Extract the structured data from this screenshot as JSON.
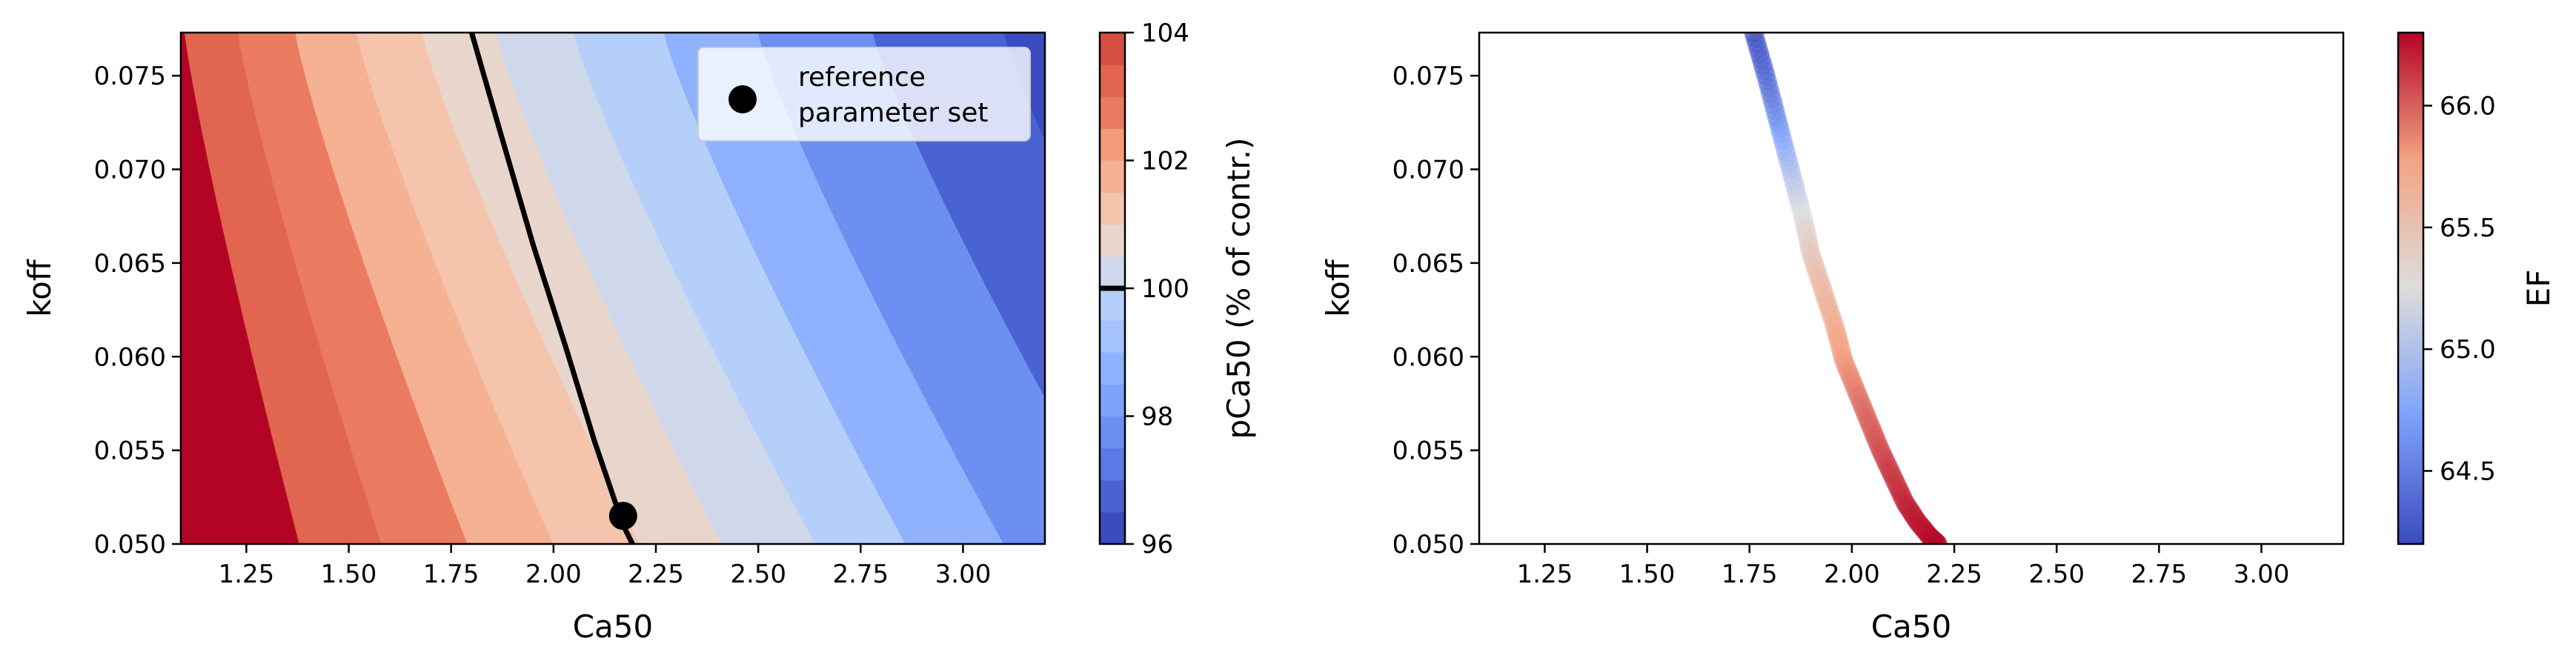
{
  "chart_data": [
    {
      "type": "contour",
      "xlabel": "Ca50",
      "ylabel": "koff",
      "xlim": [
        1.09,
        3.2
      ],
      "ylim": [
        0.05,
        0.0773
      ],
      "xticks": [
        "1.25",
        "1.50",
        "1.75",
        "2.00",
        "2.25",
        "2.50",
        "2.75",
        "3.00"
      ],
      "yticks": [
        "0.050",
        "0.055",
        "0.060",
        "0.065",
        "0.070",
        "0.075"
      ],
      "colorbar": {
        "label": "pCa50 (% of contr.)",
        "min": 96,
        "max": 104,
        "ticks": [
          "96",
          "98",
          "100",
          "102",
          "104"
        ],
        "levels": [
          96,
          96.5,
          97,
          97.5,
          98,
          98.5,
          99,
          99.5,
          100,
          100.5,
          101,
          101.5,
          102,
          102.5,
          103,
          103.5,
          104
        ],
        "colors": [
          "#3b4cc0",
          "#4a63d3",
          "#5b7ae5",
          "#6c8ff1",
          "#7ea1fa",
          "#90b2fe",
          "#a3c2fe",
          "#b5cffb",
          "#cfd8ea",
          "#e8d6cc",
          "#f4c4ac",
          "#f6b192",
          "#f39b7a",
          "#ea7b60",
          "#e2654f",
          "#d44e41",
          "#b40426"
        ],
        "reference_level": 100
      },
      "contour_100": {
        "x": [
          1.8,
          1.87,
          1.95,
          2.03,
          2.1,
          2.17,
          2.2
        ],
        "y": [
          0.0773,
          0.072,
          0.066,
          0.0605,
          0.0555,
          0.051,
          0.0497
        ]
      },
      "reference_point": {
        "x": 2.17,
        "y": 0.0515
      },
      "legend": {
        "label": "reference\nparameter set",
        "position": "upper-right"
      }
    },
    {
      "type": "scatter",
      "xlabel": "Ca50",
      "ylabel": "koff",
      "xlim": [
        1.09,
        3.2
      ],
      "ylim": [
        0.05,
        0.0773
      ],
      "xticks": [
        "1.25",
        "1.50",
        "1.75",
        "2.00",
        "2.25",
        "2.50",
        "2.75",
        "3.00"
      ],
      "yticks": [
        "0.050",
        "0.055",
        "0.060",
        "0.065",
        "0.070",
        "0.075"
      ],
      "colorbar": {
        "label": "EF",
        "min": 64.2,
        "max": 66.3,
        "ticks": [
          "64.5",
          "65.0",
          "65.5",
          "66.0"
        ]
      },
      "points": {
        "x": [
          1.76,
          1.79,
          1.82,
          1.85,
          1.88,
          1.9,
          1.93,
          1.96,
          1.98,
          2.01,
          2.04,
          2.07,
          2.1,
          2.13,
          2.16,
          2.19,
          2.21
        ],
        "y": [
          0.0773,
          0.075,
          0.0725,
          0.07,
          0.0675,
          0.0655,
          0.0635,
          0.0615,
          0.0598,
          0.0582,
          0.0566,
          0.055,
          0.0536,
          0.0522,
          0.0512,
          0.0504,
          0.05
        ],
        "ef": [
          64.2,
          64.35,
          64.6,
          64.95,
          65.25,
          65.45,
          65.6,
          65.7,
          65.8,
          65.9,
          65.98,
          66.05,
          66.12,
          66.18,
          66.22,
          66.26,
          66.28
        ]
      }
    }
  ]
}
